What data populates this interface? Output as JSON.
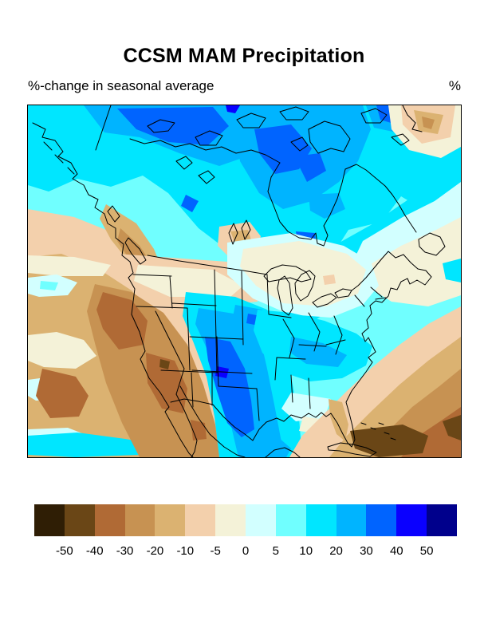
{
  "title": "CCSM MAM Precipitation",
  "subtitle_left": "%-change in seasonal average",
  "units_label": "%",
  "colorbar": {
    "levels": [
      "-50",
      "-40",
      "-30",
      "-20",
      "-10",
      "-5",
      "0",
      "5",
      "10",
      "20",
      "30",
      "40",
      "50"
    ],
    "colors": [
      "#2f1e05",
      "#6a4616",
      "#b06a35",
      "#c79252",
      "#dbb271",
      "#f3d0ac",
      "#f4f2d8",
      "#d2ffff",
      "#70ffff",
      "#00e6ff",
      "#00b4ff",
      "#0064ff",
      "#0a00ff",
      "#00008c"
    ]
  },
  "chart_data": {
    "type": "filled_contour_map",
    "title": "CCSM MAM Precipitation",
    "variable": "%-change in seasonal average",
    "units": "%",
    "projection_extent": "North America (Alaska/Arctic Canada to Mexico/Caribbean)",
    "levels": [
      -50,
      -40,
      -30,
      -20,
      -10,
      -5,
      0,
      5,
      10,
      20,
      30,
      40,
      50
    ],
    "palette": [
      "#2f1e05",
      "#6a4616",
      "#b06a35",
      "#c79252",
      "#dbb271",
      "#f3d0ac",
      "#f4f2d8",
      "#d2ffff",
      "#70ffff",
      "#00e6ff",
      "#00b4ff",
      "#0064ff",
      "#0a00ff",
      "#00008c"
    ],
    "legend_position": "bottom",
    "regions": [
      {
        "area": "Arctic Canada and far north",
        "value_pct": "+10 to +20"
      },
      {
        "area": "Northwest Territories / west of Hudson Bay",
        "value_pct": "+20 to +30"
      },
      {
        "area": "Hudson Bay vicinity",
        "value_pct": "+10 to +30"
      },
      {
        "area": "British Columbia / Pacific Northwest coast",
        "value_pct": "-10 to -20"
      },
      {
        "area": "US Southwest (California, Nevada, Arizona)",
        "value_pct": "-20 to -30"
      },
      {
        "area": "Northern Mexico and Baja",
        "value_pct": "-10 to -30"
      },
      {
        "area": "Central-southern Great Plains (Kansas-Oklahoma-Texas)",
        "value_pct": "+20 to +40"
      },
      {
        "area": "Nebraska/Iowa spot",
        "value_pct": "+30"
      },
      {
        "area": "Eastern US / Appalachians / Southeast",
        "value_pct": "+5 to +20"
      },
      {
        "area": "Great Lakes and Northeast US",
        "value_pct": "-5 to +5"
      },
      {
        "area": "Atlantic Canada / Newfoundland",
        "value_pct": "0 to +5"
      },
      {
        "area": "Subtropical Atlantic and Caribbean near Cuba",
        "value_pct": "-20 to -40"
      },
      {
        "area": "Greenland corner (top right)",
        "value_pct": "-5 to -20"
      },
      {
        "area": "Eastern Pacific off Mexico",
        "value_pct": "-10 to -30"
      }
    ]
  }
}
